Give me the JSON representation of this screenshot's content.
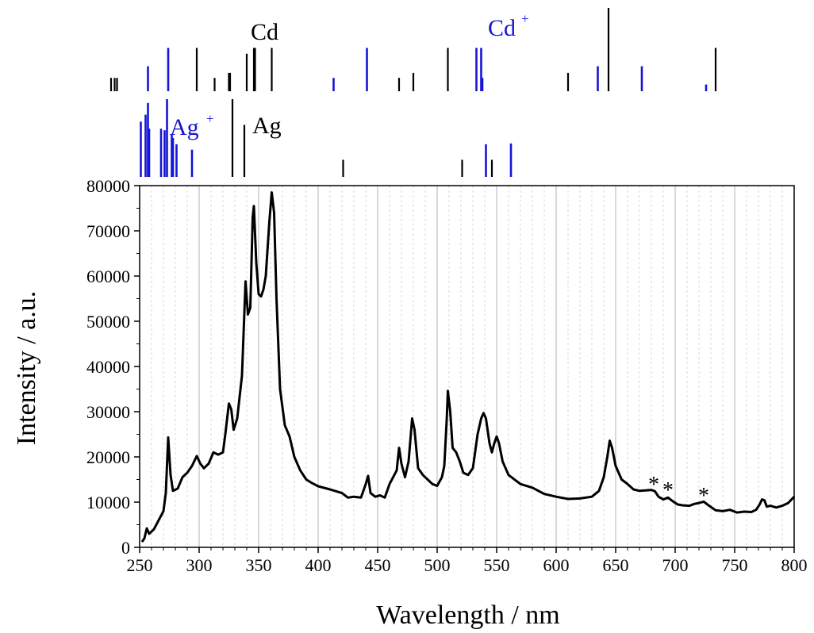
{
  "chart_data": {
    "type": "line",
    "xlabel": "Wavelength / nm",
    "ylabel": "Intensity / a.u.",
    "xlim": [
      250,
      800
    ],
    "ylim": [
      0,
      80000
    ],
    "x_ticks": [
      250,
      300,
      350,
      400,
      450,
      500,
      550,
      600,
      650,
      700,
      750,
      800
    ],
    "y_ticks": [
      0,
      10000,
      20000,
      30000,
      40000,
      50000,
      60000,
      70000,
      80000
    ],
    "grid": "vertical major and minor",
    "colors": {
      "neutral": "#000000",
      "ion": "#1515d6",
      "spectrum": "#000000",
      "grid_major": "#b3b3b3",
      "grid_minor": "#cfcfcf"
    },
    "series": [
      {
        "points": [
          [
            252,
            1200
          ],
          [
            254,
            2000
          ],
          [
            256,
            4200
          ],
          [
            258,
            3000
          ],
          [
            262,
            4000
          ],
          [
            266,
            6000
          ],
          [
            270,
            8000
          ],
          [
            272,
            12000
          ],
          [
            274,
            24300
          ],
          [
            276,
            16000
          ],
          [
            278,
            12500
          ],
          [
            282,
            13000
          ],
          [
            286,
            15500
          ],
          [
            290,
            16500
          ],
          [
            294,
            18000
          ],
          [
            298,
            20200
          ],
          [
            301,
            18500
          ],
          [
            304,
            17500
          ],
          [
            308,
            18500
          ],
          [
            312,
            21000
          ],
          [
            316,
            20500
          ],
          [
            320,
            21000
          ],
          [
            322,
            25000
          ],
          [
            325,
            31800
          ],
          [
            327,
            30500
          ],
          [
            329,
            26000
          ],
          [
            332,
            28500
          ],
          [
            336,
            38000
          ],
          [
            339,
            58800
          ],
          [
            341,
            51500
          ],
          [
            343,
            53000
          ],
          [
            345,
            73000
          ],
          [
            346,
            75500
          ],
          [
            348,
            63000
          ],
          [
            350,
            56000
          ],
          [
            352,
            55500
          ],
          [
            354,
            57000
          ],
          [
            356,
            60000
          ],
          [
            359,
            72000
          ],
          [
            361,
            78500
          ],
          [
            363,
            74000
          ],
          [
            365,
            55000
          ],
          [
            368,
            35000
          ],
          [
            372,
            27000
          ],
          [
            376,
            24500
          ],
          [
            380,
            20000
          ],
          [
            385,
            17000
          ],
          [
            390,
            15000
          ],
          [
            395,
            14200
          ],
          [
            400,
            13500
          ],
          [
            410,
            12800
          ],
          [
            420,
            12000
          ],
          [
            425,
            11000
          ],
          [
            430,
            11200
          ],
          [
            436,
            11000
          ],
          [
            440,
            14000
          ],
          [
            442,
            15800
          ],
          [
            444,
            12000
          ],
          [
            448,
            11200
          ],
          [
            452,
            11500
          ],
          [
            456,
            11000
          ],
          [
            460,
            14000
          ],
          [
            464,
            16000
          ],
          [
            466,
            17000
          ],
          [
            468,
            22000
          ],
          [
            470,
            18500
          ],
          [
            473,
            15500
          ],
          [
            476,
            19000
          ],
          [
            479,
            28500
          ],
          [
            481,
            26000
          ],
          [
            484,
            17500
          ],
          [
            488,
            16000
          ],
          [
            492,
            15000
          ],
          [
            496,
            14000
          ],
          [
            500,
            13600
          ],
          [
            504,
            15500
          ],
          [
            506,
            18000
          ],
          [
            508,
            28000
          ],
          [
            509,
            34600
          ],
          [
            511,
            30000
          ],
          [
            513,
            22000
          ],
          [
            516,
            21000
          ],
          [
            519,
            19000
          ],
          [
            522,
            16500
          ],
          [
            526,
            16000
          ],
          [
            530,
            17500
          ],
          [
            534,
            25000
          ],
          [
            537,
            28500
          ],
          [
            539,
            29700
          ],
          [
            541,
            28500
          ],
          [
            544,
            23000
          ],
          [
            546,
            21000
          ],
          [
            548,
            23000
          ],
          [
            550,
            24500
          ],
          [
            552,
            23000
          ],
          [
            555,
            19000
          ],
          [
            560,
            16000
          ],
          [
            570,
            14000
          ],
          [
            580,
            13200
          ],
          [
            590,
            11800
          ],
          [
            600,
            11200
          ],
          [
            610,
            10700
          ],
          [
            620,
            10800
          ],
          [
            630,
            11200
          ],
          [
            636,
            12500
          ],
          [
            640,
            15500
          ],
          [
            643,
            20000
          ],
          [
            645,
            23600
          ],
          [
            647,
            22000
          ],
          [
            650,
            18000
          ],
          [
            655,
            15000
          ],
          [
            660,
            14000
          ],
          [
            665,
            12800
          ],
          [
            670,
            12500
          ],
          [
            675,
            12600
          ],
          [
            680,
            12700
          ],
          [
            683,
            12400
          ],
          [
            686,
            11200
          ],
          [
            690,
            10600
          ],
          [
            694,
            11000
          ],
          [
            698,
            10200
          ],
          [
            702,
            9500
          ],
          [
            706,
            9300
          ],
          [
            712,
            9200
          ],
          [
            716,
            9600
          ],
          [
            720,
            9800
          ],
          [
            724,
            10100
          ],
          [
            728,
            9300
          ],
          [
            734,
            8200
          ],
          [
            740,
            8000
          ],
          [
            746,
            8300
          ],
          [
            752,
            7700
          ],
          [
            758,
            7900
          ],
          [
            764,
            7800
          ],
          [
            768,
            8300
          ],
          [
            771,
            9500
          ],
          [
            773,
            10600
          ],
          [
            775,
            10400
          ],
          [
            777,
            9000
          ],
          [
            780,
            9200
          ],
          [
            785,
            8800
          ],
          [
            790,
            9200
          ],
          [
            795,
            9800
          ],
          [
            800,
            11200
          ]
        ]
      }
    ],
    "annotations": [
      "*",
      "*",
      "*"
    ],
    "line_markers": [
      {
        "label": "Cd",
        "ion_label": "Cd",
        "ion_superscript": "+",
        "neutral_lines": [
          {
            "wl": 226,
            "rel": 0.16
          },
          {
            "wl": 229,
            "rel": 0.16
          },
          {
            "wl": 231,
            "rel": 0.16
          },
          {
            "wl": 298,
            "rel": 0.52
          },
          {
            "wl": 313,
            "rel": 0.16
          },
          {
            "wl": 325,
            "rel": 0.22
          },
          {
            "wl": 326,
            "rel": 0.22
          },
          {
            "wl": 340,
            "rel": 0.45
          },
          {
            "wl": 346,
            "rel": 0.52
          },
          {
            "wl": 347,
            "rel": 0.52
          },
          {
            "wl": 361,
            "rel": 0.52
          },
          {
            "wl": 468,
            "rel": 0.16
          },
          {
            "wl": 480,
            "rel": 0.22
          },
          {
            "wl": 509,
            "rel": 0.52
          },
          {
            "wl": 610,
            "rel": 0.22
          },
          {
            "wl": 644,
            "rel": 1.0
          },
          {
            "wl": 734,
            "rel": 0.52
          }
        ],
        "ion_lines": [
          {
            "wl": 257,
            "rel": 0.3
          },
          {
            "wl": 274,
            "rel": 0.52
          },
          {
            "wl": 413,
            "rel": 0.16
          },
          {
            "wl": 441,
            "rel": 0.52
          },
          {
            "wl": 533,
            "rel": 0.52
          },
          {
            "wl": 537,
            "rel": 0.52
          },
          {
            "wl": 538,
            "rel": 0.16
          },
          {
            "wl": 635,
            "rel": 0.3
          },
          {
            "wl": 672,
            "rel": 0.3
          },
          {
            "wl": 726,
            "rel": 0.08
          }
        ]
      },
      {
        "label": "Ag",
        "ion_label": "Ag",
        "ion_superscript": "+",
        "neutral_lines": [
          {
            "wl": 328,
            "rel": 1.0
          },
          {
            "wl": 338,
            "rel": 0.67
          },
          {
            "wl": 421,
            "rel": 0.22
          },
          {
            "wl": 521,
            "rel": 0.22
          },
          {
            "wl": 546,
            "rel": 0.22
          }
        ],
        "ion_lines": [
          {
            "wl": 251,
            "rel": 0.71
          },
          {
            "wl": 255,
            "rel": 0.8
          },
          {
            "wl": 257,
            "rel": 0.95
          },
          {
            "wl": 258,
            "rel": 0.62
          },
          {
            "wl": 268,
            "rel": 0.62
          },
          {
            "wl": 271,
            "rel": 0.6
          },
          {
            "wl": 273,
            "rel": 1.0
          },
          {
            "wl": 277,
            "rel": 0.55
          },
          {
            "wl": 278,
            "rel": 0.5
          },
          {
            "wl": 281,
            "rel": 0.42
          },
          {
            "wl": 294,
            "rel": 0.35
          },
          {
            "wl": 541,
            "rel": 0.42
          },
          {
            "wl": 562,
            "rel": 0.43
          }
        ]
      }
    ]
  }
}
